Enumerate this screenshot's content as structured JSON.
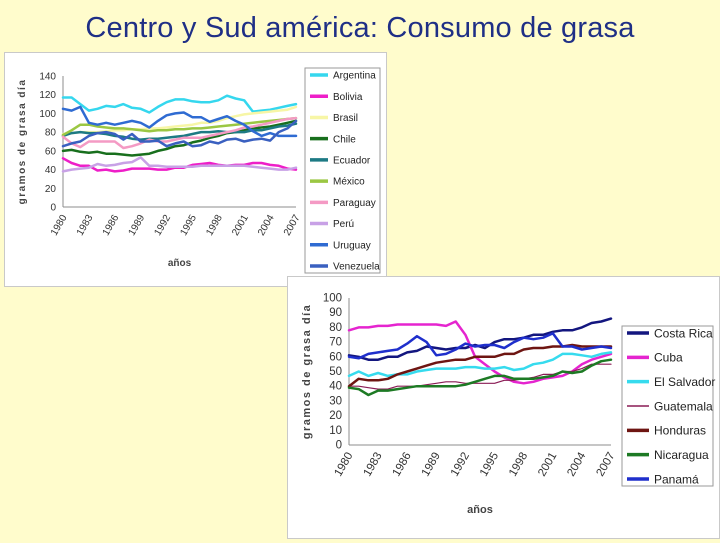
{
  "page": {
    "title": "Centro y Sud américa: Consumo de grasa"
  },
  "chart_data": [
    {
      "type": "line",
      "title": "",
      "xlabel": "años",
      "ylabel": "gramos de grasa día",
      "ylim": [
        0,
        140
      ],
      "yticks": [
        "0",
        "20",
        "40",
        "60",
        "80",
        "100",
        "120",
        "140"
      ],
      "categories": [
        "1980",
        "1981",
        "1982",
        "1983",
        "1984",
        "1985",
        "1986",
        "1987",
        "1988",
        "1989",
        "1990",
        "1991",
        "1992",
        "1993",
        "1994",
        "1995",
        "1996",
        "1997",
        "1998",
        "1999",
        "2000",
        "2001",
        "2002",
        "2003",
        "2004",
        "2005",
        "2006",
        "2007"
      ],
      "xtick_labels": [
        "1980",
        "1983",
        "1986",
        "1989",
        "1992",
        "1995",
        "1998",
        "2001",
        "2004",
        "2007"
      ],
      "legend_position": "right",
      "series": [
        {
          "name": "Argentina",
          "color": "#35d7ee",
          "width": 2.5,
          "values": [
            117,
            117,
            110,
            103,
            105,
            108,
            107,
            110,
            106,
            105,
            101,
            107,
            112,
            115,
            115,
            113,
            112,
            112,
            114,
            119,
            116,
            114,
            102,
            103,
            104,
            106,
            108,
            110
          ]
        },
        {
          "name": "Bolivia",
          "color": "#ee1ec8",
          "width": 2.5,
          "values": [
            52,
            47,
            44,
            44,
            39,
            40,
            38,
            39,
            41,
            41,
            41,
            40,
            40,
            42,
            42,
            45,
            46,
            47,
            45,
            44,
            45,
            45,
            47,
            47,
            45,
            44,
            41,
            40
          ]
        },
        {
          "name": "Brasil",
          "color": "#f7f6a6",
          "width": 2.5,
          "values": [
            78,
            79,
            80,
            80,
            80,
            81,
            82,
            82,
            83,
            83,
            84,
            84,
            85,
            86,
            87,
            88,
            90,
            90,
            92,
            95,
            97,
            99,
            100,
            101,
            102,
            103,
            104,
            107
          ]
        },
        {
          "name": "Chile",
          "color": "#186f1d",
          "width": 2.5,
          "values": [
            60,
            61,
            59,
            58,
            59,
            57,
            57,
            56,
            55,
            56,
            57,
            60,
            62,
            65,
            66,
            69,
            71,
            74,
            76,
            79,
            80,
            82,
            84,
            85,
            86,
            88,
            90,
            92
          ]
        },
        {
          "name": "Ecuador",
          "color": "#1d7a84",
          "width": 2.5,
          "values": [
            76,
            79,
            80,
            79,
            79,
            78,
            76,
            75,
            73,
            72,
            73,
            73,
            74,
            75,
            76,
            78,
            80,
            80,
            81,
            80,
            80,
            80,
            82,
            82,
            84,
            86,
            87,
            89
          ]
        },
        {
          "name": "México",
          "color": "#9bc743",
          "width": 2.5,
          "values": [
            77,
            82,
            88,
            88,
            86,
            85,
            84,
            84,
            83,
            82,
            81,
            82,
            82,
            83,
            83,
            84,
            84,
            85,
            86,
            87,
            88,
            89,
            90,
            91,
            92,
            93,
            94,
            95
          ]
        },
        {
          "name": "Paraguay",
          "color": "#f49ac4",
          "width": 2.5,
          "values": [
            75,
            68,
            64,
            70,
            70,
            70,
            70,
            63,
            65,
            68,
            72,
            70,
            70,
            72,
            74,
            74,
            74,
            76,
            78,
            80,
            82,
            85,
            86,
            88,
            90,
            92,
            94,
            95
          ]
        },
        {
          "name": "Perú",
          "color": "#c8a1e6",
          "width": 2.5,
          "values": [
            38,
            40,
            41,
            42,
            46,
            44,
            45,
            47,
            48,
            53,
            44,
            44,
            43,
            43,
            43,
            43,
            44,
            44,
            44,
            44,
            44,
            44,
            43,
            42,
            41,
            40,
            40,
            42
          ]
        },
        {
          "name": "Uruguay",
          "color": "#2f6bd2",
          "width": 2.5,
          "values": [
            105,
            103,
            107,
            90,
            88,
            90,
            88,
            90,
            92,
            90,
            85,
            92,
            98,
            100,
            101,
            96,
            96,
            91,
            94,
            97,
            92,
            88,
            81,
            76,
            79,
            76,
            76,
            76
          ]
        },
        {
          "name": "Venezuela",
          "color": "#3a60c0",
          "width": 2.5,
          "values": [
            65,
            68,
            70,
            76,
            79,
            80,
            78,
            72,
            78,
            70,
            70,
            71,
            65,
            68,
            70,
            65,
            66,
            70,
            68,
            72,
            73,
            70,
            72,
            73,
            71,
            80,
            84,
            92
          ]
        }
      ]
    },
    {
      "type": "line",
      "title": "",
      "xlabel": "años",
      "ylabel": "gramos de grasa día",
      "ylim": [
        0,
        100
      ],
      "yticks": [
        "0",
        "10",
        "20",
        "30",
        "40",
        "50",
        "60",
        "70",
        "80",
        "90",
        "100"
      ],
      "categories": [
        "1980",
        "1981",
        "1982",
        "1983",
        "1984",
        "1985",
        "1986",
        "1987",
        "1988",
        "1989",
        "1990",
        "1991",
        "1992",
        "1993",
        "1994",
        "1995",
        "1996",
        "1997",
        "1998",
        "1999",
        "2000",
        "2001",
        "2002",
        "2003",
        "2004",
        "2005",
        "2006",
        "2007"
      ],
      "xtick_labels": [
        "1980",
        "1983",
        "1986",
        "1989",
        "1992",
        "1995",
        "1998",
        "2001",
        "2004",
        "2007"
      ],
      "legend_position": "right",
      "series": [
        {
          "name": "Costa Rica",
          "color": "#13167f",
          "width": 2.5,
          "values": [
            61,
            60,
            58,
            58,
            60,
            60,
            63,
            64,
            67,
            66,
            65,
            66,
            66,
            68,
            66,
            70,
            72,
            72,
            73,
            75,
            75,
            77,
            78,
            78,
            80,
            83,
            84,
            86
          ]
        },
        {
          "name": "Cuba",
          "color": "#e524cf",
          "width": 2.5,
          "values": [
            78,
            80,
            80,
            81,
            81,
            82,
            82,
            82,
            82,
            82,
            81,
            84,
            75,
            60,
            55,
            50,
            46,
            43,
            42,
            43,
            45,
            46,
            47,
            50,
            55,
            58,
            60,
            62
          ]
        },
        {
          "name": "El Salvador",
          "color": "#36dbee",
          "width": 2.5,
          "values": [
            47,
            50,
            47,
            49,
            47,
            48,
            48,
            50,
            51,
            52,
            52,
            52,
            53,
            53,
            52,
            52,
            53,
            51,
            52,
            55,
            56,
            58,
            62,
            62,
            61,
            60,
            62,
            63
          ]
        },
        {
          "name": "Guatemala",
          "color": "#8a1b55",
          "width": 1.2,
          "values": [
            40,
            40,
            39,
            38,
            38,
            40,
            40,
            40,
            41,
            42,
            43,
            43,
            42,
            42,
            42,
            42,
            44,
            44,
            45,
            46,
            48,
            48,
            50,
            50,
            52,
            55,
            55,
            55
          ]
        },
        {
          "name": "Honduras",
          "color": "#6e1512",
          "width": 2.5,
          "values": [
            40,
            45,
            44,
            44,
            45,
            48,
            50,
            52,
            54,
            56,
            57,
            58,
            58,
            60,
            60,
            60,
            62,
            62,
            65,
            66,
            66,
            67,
            67,
            68,
            67,
            67,
            67,
            67
          ]
        },
        {
          "name": "Nicaragua",
          "color": "#1d7a24",
          "width": 2.5,
          "values": [
            39,
            38,
            34,
            37,
            37,
            38,
            39,
            40,
            40,
            40,
            40,
            40,
            41,
            43,
            45,
            47,
            47,
            45,
            45,
            45,
            46,
            47,
            50,
            49,
            50,
            54,
            57,
            58
          ]
        },
        {
          "name": "Panamá",
          "color": "#1f2fcc",
          "width": 2.5,
          "values": [
            60,
            59,
            62,
            63,
            64,
            65,
            69,
            74,
            70,
            61,
            62,
            65,
            69,
            67,
            68,
            68,
            66,
            70,
            73,
            72,
            73,
            76,
            67,
            67,
            65,
            66,
            67,
            66
          ]
        }
      ]
    }
  ]
}
